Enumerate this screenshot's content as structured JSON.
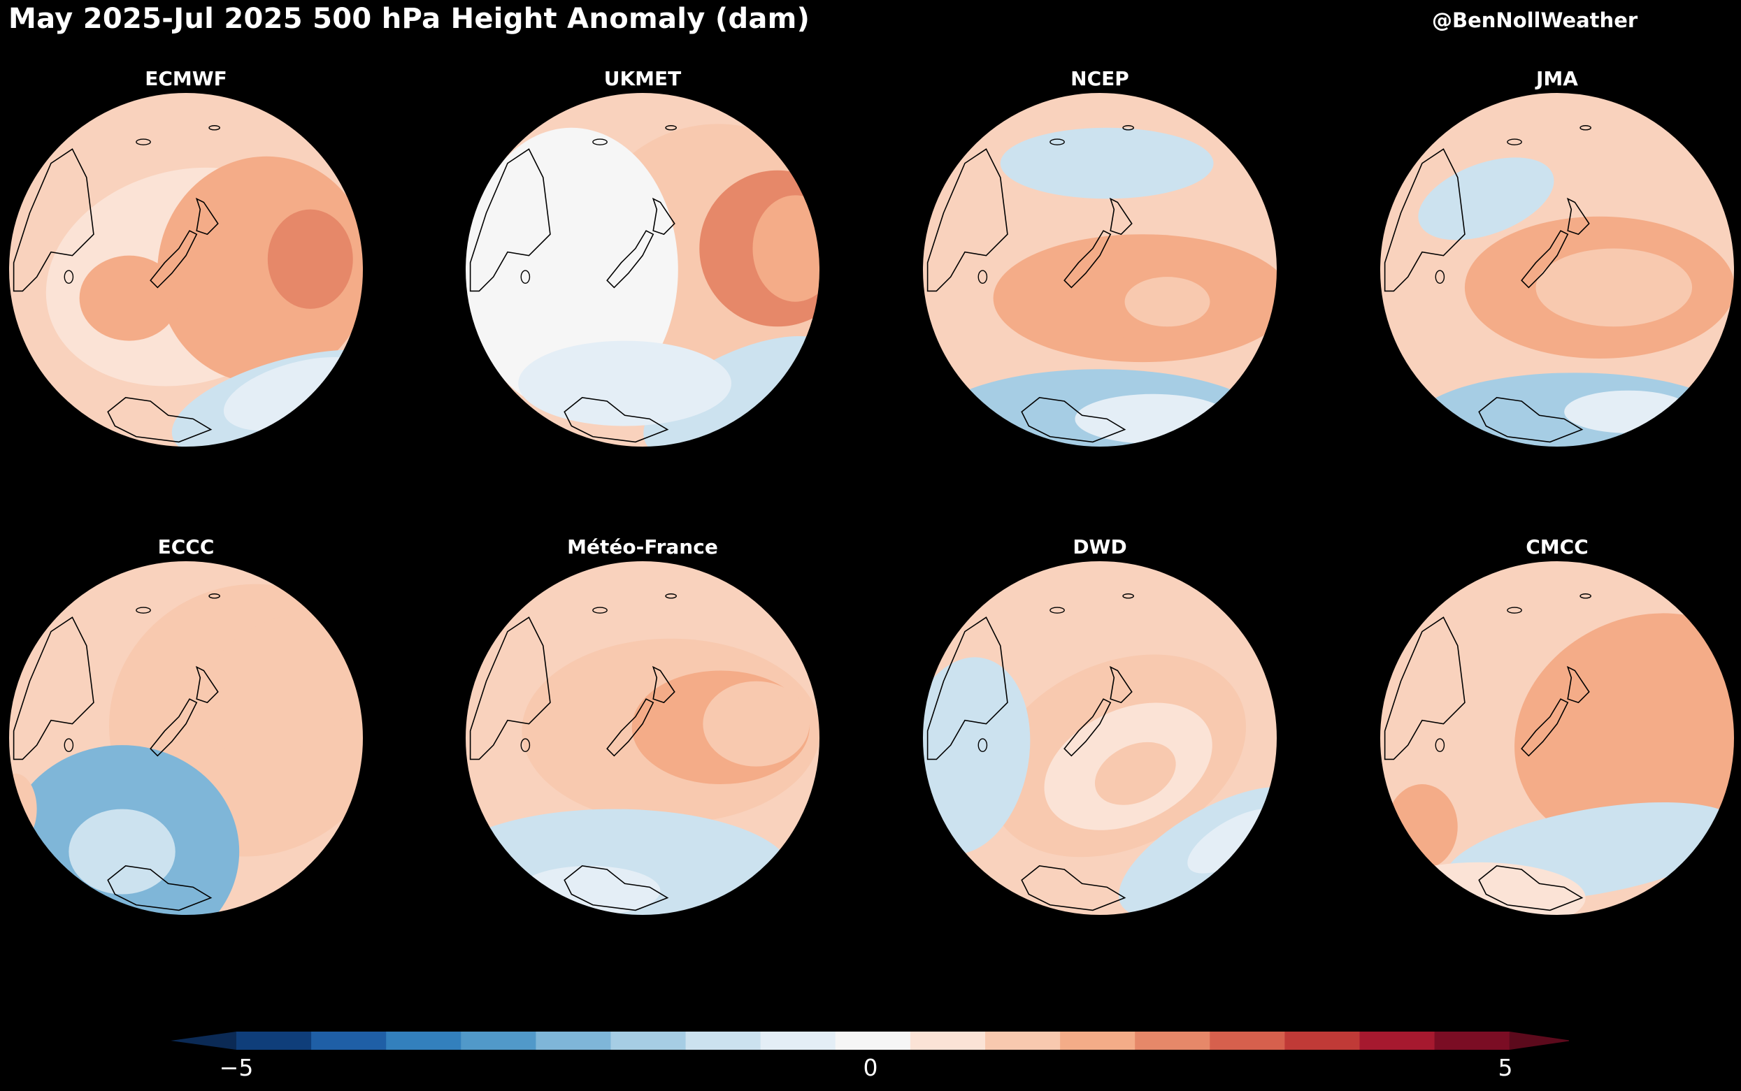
{
  "header": {
    "title": "May 2025-Jul 2025 500 hPa Height Anomaly (dam)",
    "credit": "@BenNollWeather"
  },
  "panels": [
    {
      "label": "ECMWF",
      "blobs": [
        [
          0.5,
          0.52,
          0.4,
          0.3,
          -15,
          0.9
        ],
        [
          0.72,
          0.5,
          0.3,
          0.32,
          10,
          1.9
        ],
        [
          0.34,
          0.58,
          0.14,
          0.12,
          0,
          1.9
        ],
        [
          0.85,
          0.47,
          0.12,
          0.14,
          0,
          2.7
        ],
        [
          0.8,
          0.88,
          0.35,
          0.13,
          -15,
          -1.0
        ],
        [
          0.82,
          0.85,
          0.22,
          0.09,
          -15,
          -0.6
        ]
      ]
    },
    {
      "label": "UKMET",
      "blobs": [
        [
          0.72,
          0.45,
          0.38,
          0.36,
          10,
          1.3
        ],
        [
          0.88,
          0.44,
          0.22,
          0.22,
          0,
          2.4
        ],
        [
          0.93,
          0.44,
          0.12,
          0.15,
          0,
          1.9
        ],
        [
          0.3,
          0.5,
          0.3,
          0.4,
          0,
          0.3
        ],
        [
          0.78,
          0.86,
          0.3,
          0.13,
          -25,
          -1.3
        ],
        [
          0.88,
          0.85,
          0.2,
          0.1,
          -25,
          -1.2
        ],
        [
          0.45,
          0.82,
          0.3,
          0.12,
          0,
          -0.4
        ]
      ]
    },
    {
      "label": "NCEP",
      "blobs": [
        [
          0.62,
          0.58,
          0.42,
          0.18,
          0,
          2.1
        ],
        [
          0.67,
          0.59,
          0.25,
          0.11,
          0,
          1.6
        ],
        [
          0.69,
          0.59,
          0.12,
          0.07,
          0,
          1.5
        ],
        [
          0.52,
          0.2,
          0.3,
          0.1,
          0,
          -1.0
        ],
        [
          0.5,
          0.94,
          0.48,
          0.16,
          0,
          -2.1
        ],
        [
          0.65,
          0.92,
          0.22,
          0.07,
          0,
          -0.5
        ]
      ]
    },
    {
      "label": "JMA",
      "blobs": [
        [
          0.62,
          0.55,
          0.38,
          0.2,
          0,
          2.1
        ],
        [
          0.66,
          0.55,
          0.22,
          0.11,
          0,
          1.5
        ],
        [
          0.3,
          0.3,
          0.2,
          0.1,
          -20,
          -1.2
        ],
        [
          0.55,
          0.93,
          0.45,
          0.14,
          0,
          -1.9
        ],
        [
          0.7,
          0.9,
          0.18,
          0.06,
          0,
          -0.5
        ]
      ]
    },
    {
      "label": "ECCC",
      "blobs": [
        [
          0.68,
          0.45,
          0.4,
          0.38,
          -25,
          1.0
        ],
        [
          0.77,
          0.35,
          0.25,
          0.18,
          -30,
          1.3
        ],
        [
          0.32,
          0.82,
          0.33,
          0.3,
          0,
          -2.3
        ],
        [
          0.32,
          0.82,
          0.15,
          0.12,
          0,
          -1.4
        ],
        [
          0.02,
          0.7,
          0.06,
          0.1,
          0,
          1.2
        ]
      ]
    },
    {
      "label": "Météo-France",
      "blobs": [
        [
          0.58,
          0.48,
          0.42,
          0.26,
          0,
          1.5
        ],
        [
          0.72,
          0.47,
          0.25,
          0.16,
          0,
          1.6
        ],
        [
          0.82,
          0.46,
          0.15,
          0.12,
          0,
          1.4
        ],
        [
          0.42,
          0.88,
          0.5,
          0.18,
          0,
          -1.5
        ],
        [
          0.35,
          0.93,
          0.2,
          0.07,
          0,
          -0.8
        ]
      ]
    },
    {
      "label": "DWD",
      "blobs": [
        [
          0.55,
          0.55,
          0.38,
          0.26,
          -25,
          1.0
        ],
        [
          0.58,
          0.58,
          0.25,
          0.16,
          -25,
          0.9
        ],
        [
          0.6,
          0.6,
          0.12,
          0.08,
          -25,
          1.3
        ],
        [
          0.12,
          0.55,
          0.18,
          0.28,
          10,
          -1.4
        ],
        [
          0.82,
          0.82,
          0.3,
          0.12,
          -30,
          -1.4
        ],
        [
          0.88,
          0.79,
          0.15,
          0.06,
          -30,
          -0.9
        ]
      ]
    },
    {
      "label": "CMCC",
      "blobs": [
        [
          0.75,
          0.48,
          0.38,
          0.32,
          -25,
          1.6
        ],
        [
          0.9,
          0.55,
          0.18,
          0.2,
          -20,
          2.0
        ],
        [
          0.6,
          0.82,
          0.42,
          0.12,
          -10,
          -1.4
        ],
        [
          0.12,
          0.75,
          0.1,
          0.12,
          0,
          1.8
        ],
        [
          0.28,
          0.95,
          0.3,
          0.1,
          0,
          0.8
        ]
      ]
    }
  ],
  "colorbar": {
    "min": -5,
    "max": 5,
    "ticks": [
      "−5",
      "0",
      "5"
    ],
    "colors": [
      "#0f3e7a",
      "#1f5fa6",
      "#3380bd",
      "#5199c9",
      "#7fb6d8",
      "#a6cde4",
      "#cce2ef",
      "#e4eef6",
      "#f6f6f6",
      "#fbe3d6",
      "#f8c9af",
      "#f4ac88",
      "#e68869",
      "#d6604d",
      "#c03a37",
      "#a6192f",
      "#7b0d24"
    ],
    "extend_low_color": "#0b2a55",
    "extend_high_color": "#5c0a1c"
  },
  "base_color": "#f9d2bd"
}
